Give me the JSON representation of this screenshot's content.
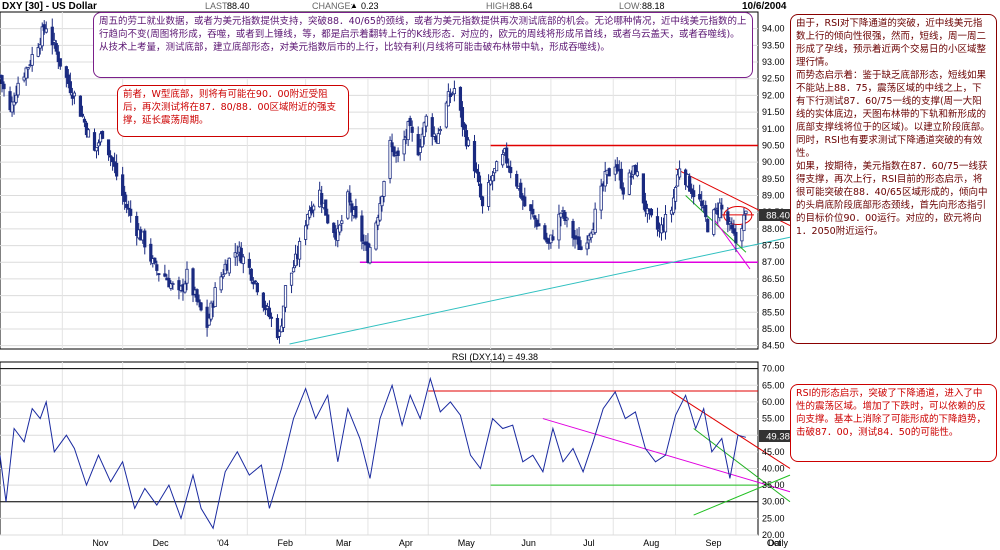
{
  "header": {
    "symbol": "DXY [30] - US Dollar",
    "last_label": "LAST:",
    "last": "88.40",
    "change_label": "CHANGE:",
    "change": "0.23",
    "high_label": "HIGH:",
    "high": "88.64",
    "low_label": "LOW:",
    "low": "88.18",
    "date": "10/6/2004"
  },
  "annotations": {
    "top": "周五的劳工就业数据，或者为美元指数提供支持，突破88．40/65的颈线，或者为美元指数提供再次测试底部的机会。无论哪种情况，近中线美元指数的上行趋向不变(周图将形成，吞噬，或者到上锤线，等，都是启示着翻转上行的K线形态．对应的，欧元的周线将形成吊首线，或者乌云盖天，或者吞噬线)。从技术上考量，测试底部，建立底部形态，对美元指数后市的上行，比较有利(月线将可能击破布林带中轨，形成吞噬线)。",
    "left": "前者，W型底部，则将有可能在90．00附近受阻后，再次测试将在87．80/88．00区域附近的强支撑，延长震荡周期。",
    "right": "由于，RSI对下降通道的突破，近中线美元指数上行的倾向性很强，然而，短线，周一周二形成了孕线，预示着近两个交易日的小区域整理行情。\n而势态启示着：鉴于缺乏底部形态，短线如果不能站上88．75，震荡区域的中线之上，下有下行测试87．60/75一线的支撑(周一大阳线的实体底边，天图布林带的下轨和新形成的底部支撑线将位于的区域)。以建立阶段底部。同时，RSI也有要求测试下降通道突破的有效性。\n如果，按期待，美元指数在87．60/75一线获得支撑，再次上行，RSI目前的形态启示，将很可能突破在88．40/65区域形成的，倾向中的头肩底阶段底部形态颈线，首先向形态指引的目标价位90．00运行。对应的，欧元将向1．2050附近运行。",
    "rsi": "RSI的形态启示，突破了下降通道，进入了中性的震荡区域。增加了下跌时，可以依赖的反向支撑。基本上消除了可能形成的下降趋势，击破87．00，测试84．50的可能性。"
  },
  "chart_data": [
    {
      "type": "candlestick",
      "title": "DXY [30] - US Dollar",
      "y_ticks": [
        "84.50",
        "85.00",
        "85.50",
        "86.00",
        "86.50",
        "87.00",
        "87.50",
        "88.00",
        "88.50",
        "89.00",
        "89.50",
        "90.00",
        "90.50",
        "91.00",
        "91.50",
        "92.00",
        "92.50",
        "93.00",
        "93.50",
        "94.00"
      ],
      "ylim": [
        84.4,
        94.5
      ],
      "x_ticks": [
        "Nov",
        "Dec",
        "'04",
        "Feb",
        "Mar",
        "Apr",
        "May",
        "Jun",
        "Jul",
        "Aug",
        "Sep",
        "Oct",
        "Daily"
      ],
      "last_value_label": "88.40",
      "grid": true,
      "close_path": [
        [
          "2003-10-01",
          92.6
        ],
        [
          "2003-10-06",
          91.5
        ],
        [
          "2003-10-10",
          92.4
        ],
        [
          "2003-10-15",
          92.9
        ],
        [
          "2003-10-20",
          93.6
        ],
        [
          "2003-10-24",
          94.1
        ],
        [
          "2003-10-29",
          93.3
        ],
        [
          "2003-11-03",
          92.5
        ],
        [
          "2003-11-07",
          92.0
        ],
        [
          "2003-11-12",
          91.2
        ],
        [
          "2003-11-17",
          90.3
        ],
        [
          "2003-11-21",
          90.9
        ],
        [
          "2003-11-26",
          90.0
        ],
        [
          "2003-12-02",
          88.8
        ],
        [
          "2003-12-08",
          88.0
        ],
        [
          "2003-12-12",
          87.6
        ],
        [
          "2003-12-17",
          86.8
        ],
        [
          "2003-12-22",
          86.6
        ],
        [
          "2003-12-29",
          86.0
        ],
        [
          "2004-01-02",
          86.6
        ],
        [
          "2004-01-07",
          85.8
        ],
        [
          "2004-01-12",
          85.1
        ],
        [
          "2004-01-16",
          86.1
        ],
        [
          "2004-01-21",
          86.9
        ],
        [
          "2004-01-27",
          87.4
        ],
        [
          "2004-02-02",
          86.8
        ],
        [
          "2004-02-06",
          86.3
        ],
        [
          "2004-02-11",
          85.5
        ],
        [
          "2004-02-17",
          84.8
        ],
        [
          "2004-02-20",
          86.2
        ],
        [
          "2004-02-26",
          87.2
        ],
        [
          "2004-03-02",
          88.5
        ],
        [
          "2004-03-08",
          89.1
        ],
        [
          "2004-03-12",
          88.3
        ],
        [
          "2004-03-17",
          87.8
        ],
        [
          "2004-03-22",
          88.9
        ],
        [
          "2004-03-26",
          88.2
        ],
        [
          "2004-04-01",
          87.2
        ],
        [
          "2004-04-06",
          88.5
        ],
        [
          "2004-04-12",
          90.5
        ],
        [
          "2004-04-16",
          90.1
        ],
        [
          "2004-04-21",
          91.0
        ],
        [
          "2004-04-26",
          90.4
        ],
        [
          "2004-04-30",
          91.3
        ],
        [
          "2004-05-05",
          90.7
        ],
        [
          "2004-05-11",
          91.9
        ],
        [
          "2004-05-14",
          92.2
        ],
        [
          "2004-05-19",
          90.9
        ],
        [
          "2004-05-24",
          89.9
        ],
        [
          "2004-05-28",
          88.6
        ],
        [
          "2004-06-02",
          89.6
        ],
        [
          "2004-06-08",
          90.2
        ],
        [
          "2004-06-14",
          89.4
        ],
        [
          "2004-06-18",
          88.7
        ],
        [
          "2004-06-24",
          88.2
        ],
        [
          "2004-06-30",
          87.5
        ],
        [
          "2004-07-06",
          88.5
        ],
        [
          "2004-07-12",
          87.8
        ],
        [
          "2004-07-16",
          87.4
        ],
        [
          "2004-07-22",
          88.2
        ],
        [
          "2004-07-28",
          89.5
        ],
        [
          "2004-08-02",
          90.0
        ],
        [
          "2004-08-06",
          89.2
        ],
        [
          "2004-08-12",
          89.8
        ],
        [
          "2004-08-18",
          88.4
        ],
        [
          "2004-08-24",
          87.9
        ],
        [
          "2004-08-30",
          88.6
        ],
        [
          "2004-09-03",
          89.9
        ],
        [
          "2004-09-08",
          89.3
        ],
        [
          "2004-09-13",
          88.8
        ],
        [
          "2004-09-17",
          88.1
        ],
        [
          "2004-09-23",
          88.7
        ],
        [
          "2004-09-28",
          88.0
        ],
        [
          "2004-10-01",
          87.6
        ],
        [
          "2004-10-04",
          88.2
        ],
        [
          "2004-10-06",
          88.4
        ]
      ]
    },
    {
      "type": "line",
      "title": "RSI (DXY,14) = 49.38",
      "y_ticks": [
        "20.00",
        "25.00",
        "30.00",
        "35.00",
        "40.00",
        "45.00",
        "50.00",
        "55.00",
        "60.00",
        "65.00",
        "70.00"
      ],
      "ylim": [
        20,
        72
      ],
      "hlines": [
        30,
        70
      ],
      "last_value_label": "49.38",
      "series": [
        {
          "values": [
            [
              "2003-10-01",
              44
            ],
            [
              "2003-10-04",
              30
            ],
            [
              "2003-10-08",
              52
            ],
            [
              "2003-10-13",
              48
            ],
            [
              "2003-10-17",
              58
            ],
            [
              "2003-10-21",
              55
            ],
            [
              "2003-10-24",
              60
            ],
            [
              "2003-10-28",
              45
            ],
            [
              "2003-11-03",
              50
            ],
            [
              "2003-11-07",
              46
            ],
            [
              "2003-11-13",
              35
            ],
            [
              "2003-11-19",
              44
            ],
            [
              "2003-11-25",
              36
            ],
            [
              "2003-12-01",
              42
            ],
            [
              "2003-12-07",
              28
            ],
            [
              "2003-12-12",
              34
            ],
            [
              "2003-12-18",
              29
            ],
            [
              "2003-12-24",
              35
            ],
            [
              "2003-12-30",
              25
            ],
            [
              "2004-01-05",
              38
            ],
            [
              "2004-01-09",
              28
            ],
            [
              "2004-01-15",
              22
            ],
            [
              "2004-01-21",
              39
            ],
            [
              "2004-01-27",
              45
            ],
            [
              "2004-02-02",
              38
            ],
            [
              "2004-02-08",
              41
            ],
            [
              "2004-02-12",
              28
            ],
            [
              "2004-02-18",
              40
            ],
            [
              "2004-02-24",
              55
            ],
            [
              "2004-03-01",
              64
            ],
            [
              "2004-03-06",
              55
            ],
            [
              "2004-03-12",
              62
            ],
            [
              "2004-03-17",
              42
            ],
            [
              "2004-03-22",
              58
            ],
            [
              "2004-03-28",
              49
            ],
            [
              "2004-04-02",
              37
            ],
            [
              "2004-04-07",
              55
            ],
            [
              "2004-04-13",
              65
            ],
            [
              "2004-04-18",
              53
            ],
            [
              "2004-04-22",
              62
            ],
            [
              "2004-04-27",
              55
            ],
            [
              "2004-05-02",
              67
            ],
            [
              "2004-05-07",
              57
            ],
            [
              "2004-05-12",
              60
            ],
            [
              "2004-05-17",
              56
            ],
            [
              "2004-05-22",
              44
            ],
            [
              "2004-05-27",
              40
            ],
            [
              "2004-06-02",
              55
            ],
            [
              "2004-06-07",
              52
            ],
            [
              "2004-06-12",
              53
            ],
            [
              "2004-06-17",
              42
            ],
            [
              "2004-06-22",
              44
            ],
            [
              "2004-06-27",
              39
            ],
            [
              "2004-07-02",
              52
            ],
            [
              "2004-07-07",
              42
            ],
            [
              "2004-07-12",
              46
            ],
            [
              "2004-07-17",
              39
            ],
            [
              "2004-07-22",
              48
            ],
            [
              "2004-07-27",
              58
            ],
            [
              "2004-08-02",
              63
            ],
            [
              "2004-08-07",
              55
            ],
            [
              "2004-08-12",
              57
            ],
            [
              "2004-08-17",
              46
            ],
            [
              "2004-08-22",
              42
            ],
            [
              "2004-08-27",
              44
            ],
            [
              "2004-09-01",
              56
            ],
            [
              "2004-09-06",
              62
            ],
            [
              "2004-09-11",
              52
            ],
            [
              "2004-09-15",
              58
            ],
            [
              "2004-09-19",
              45
            ],
            [
              "2004-09-24",
              49
            ],
            [
              "2004-09-28",
              37
            ],
            [
              "2004-10-02",
              50
            ],
            [
              "2004-10-06",
              49.38
            ]
          ]
        }
      ]
    }
  ]
}
